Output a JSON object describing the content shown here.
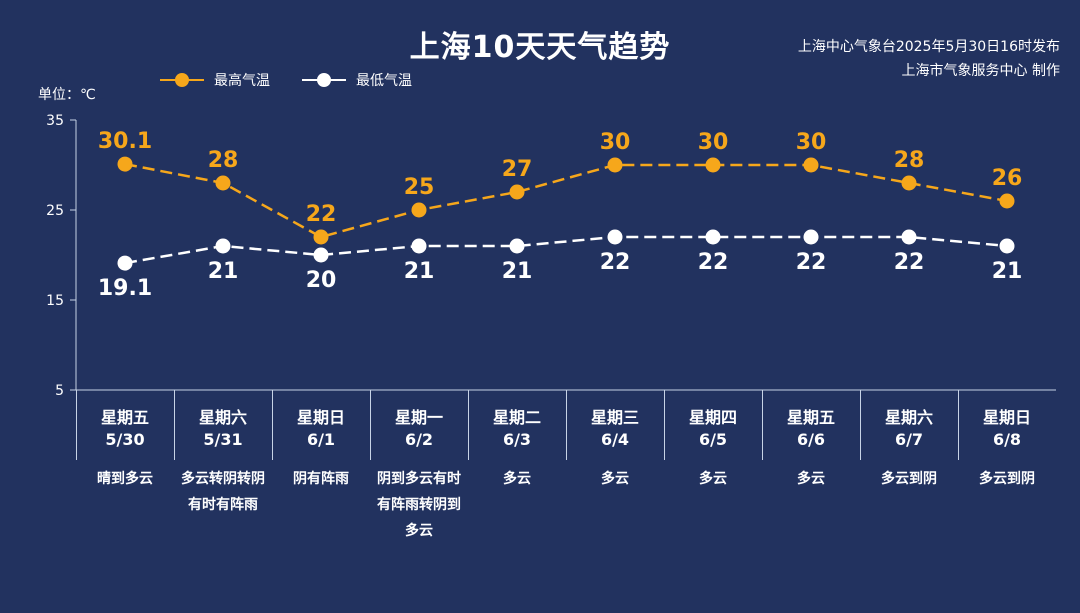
{
  "title": "上海10天天气趋势",
  "issuer_line1": "上海中心气象台2025年5月30日16时发布",
  "issuer_line2": "上海市气象服务中心 制作",
  "unit_label": "单位：℃",
  "colors": {
    "background": "#22325f",
    "high": "#f6a71b",
    "low": "#ffffff",
    "axis": "#c7d3e6"
  },
  "chart_data": {
    "type": "line",
    "ylim": [
      5,
      35
    ],
    "yticks": [
      "35",
      "25",
      "15",
      "5"
    ],
    "categories": [
      "5/30",
      "5/31",
      "6/1",
      "6/2",
      "6/3",
      "6/4",
      "6/5",
      "6/6",
      "6/7",
      "6/8"
    ],
    "series": [
      {
        "name": "最高气温",
        "values": [
          30.1,
          28,
          22,
          25,
          27,
          30,
          30,
          30,
          28,
          26
        ],
        "labels": [
          "30.1",
          "28",
          "22",
          "25",
          "27",
          "30",
          "30",
          "30",
          "28",
          "26"
        ]
      },
      {
        "name": "最低气温",
        "values": [
          19.1,
          21,
          20,
          21,
          21,
          22,
          22,
          22,
          22,
          21
        ],
        "labels": [
          "19.1",
          "21",
          "20",
          "21",
          "21",
          "22",
          "22",
          "22",
          "22",
          "21"
        ]
      }
    ]
  },
  "days": [
    {
      "weekday": "星期五",
      "date": "5/30",
      "weather": "晴到多云"
    },
    {
      "weekday": "星期六",
      "date": "5/31",
      "weather": "多云转阴转阴有时有阵雨"
    },
    {
      "weekday": "星期日",
      "date": "6/1",
      "weather": "阴有阵雨"
    },
    {
      "weekday": "星期一",
      "date": "6/2",
      "weather": "阴到多云有时有阵雨转阴到多云"
    },
    {
      "weekday": "星期二",
      "date": "6/3",
      "weather": "多云"
    },
    {
      "weekday": "星期三",
      "date": "6/4",
      "weather": "多云"
    },
    {
      "weekday": "星期四",
      "date": "6/5",
      "weather": "多云"
    },
    {
      "weekday": "星期五",
      "date": "6/6",
      "weather": "多云"
    },
    {
      "weekday": "星期六",
      "date": "6/7",
      "weather": "多云到阴"
    },
    {
      "weekday": "星期日",
      "date": "6/8",
      "weather": "多云到阴"
    }
  ]
}
